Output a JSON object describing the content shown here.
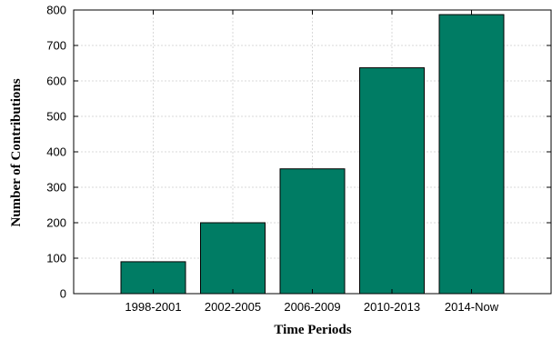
{
  "chart_data": {
    "type": "bar",
    "categories": [
      "1998-2001",
      "2002-2005",
      "2006-2009",
      "2010-2013",
      "2014-Now"
    ],
    "values": [
      90,
      200,
      352,
      637,
      787
    ],
    "title": "",
    "xlabel": "Time Periods",
    "ylabel": "Number of Contributions",
    "ylim": [
      0,
      800
    ],
    "yticks": [
      "0",
      "100",
      "200",
      "300",
      "400",
      "500",
      "600",
      "700",
      "800"
    ],
    "grid": true,
    "legend": "none",
    "bar_color": "#007c64"
  }
}
